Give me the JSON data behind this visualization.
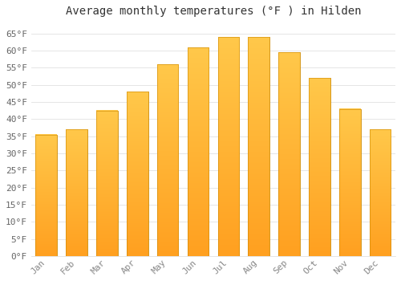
{
  "title": "Average monthly temperatures (°F ) in Hilden",
  "months": [
    "Jan",
    "Feb",
    "Mar",
    "Apr",
    "May",
    "Jun",
    "Jul",
    "Aug",
    "Sep",
    "Oct",
    "Nov",
    "Dec"
  ],
  "values": [
    35.5,
    37,
    42.5,
    48,
    56,
    61,
    64,
    64,
    59.5,
    52,
    43,
    37
  ],
  "bar_color_top": "#FFC84A",
  "bar_color_bottom": "#FFA020",
  "bar_edge_color": "#CC8800",
  "background_color": "#FFFFFF",
  "grid_color": "#E0E0E0",
  "ylim": [
    0,
    68
  ],
  "yticks": [
    0,
    5,
    10,
    15,
    20,
    25,
    30,
    35,
    40,
    45,
    50,
    55,
    60,
    65
  ],
  "title_fontsize": 10,
  "tick_fontsize": 8,
  "tick_color": "#888888",
  "ytick_color": "#666666",
  "font_family": "monospace"
}
